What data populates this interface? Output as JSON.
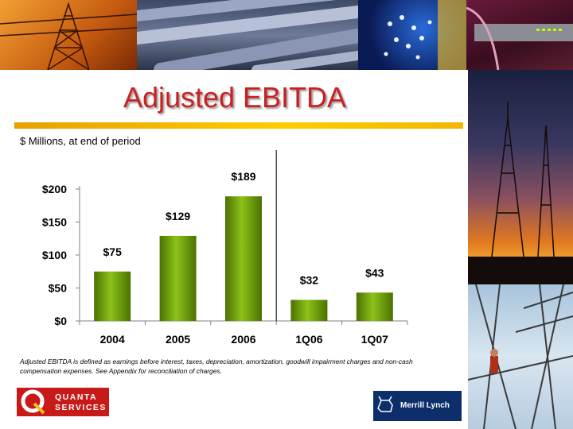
{
  "title": "Adjusted EBITDA",
  "subtitle": "$ Millions, at end of period",
  "chart_data": {
    "type": "bar",
    "categories": [
      "2004",
      "2005",
      "2006",
      "1Q06",
      "1Q07"
    ],
    "values": [
      75,
      129,
      189,
      32,
      43
    ],
    "data_labels": [
      "$75",
      "$129",
      "$189",
      "$32",
      "$43"
    ],
    "yticks": [
      "$0",
      "$50",
      "$100",
      "$150",
      "$200"
    ],
    "ytick_values": [
      0,
      50,
      100,
      150,
      200
    ],
    "ylim": [
      0,
      200
    ],
    "xlabel": "",
    "ylabel": "",
    "grid": false,
    "bar_color": "#6a9a00",
    "divider_after_index": 2
  },
  "footnote": "Adjusted EBITDA is defined as earnings before interest, taxes, depreciation, amortization, goodwill impairment charges and non-cash compensation expenses. See Appendix for reconciliation of charges.",
  "logos": {
    "quanta": {
      "line1": "QUANTA",
      "line2": "SERVICES",
      "color": "#c91a1a"
    },
    "merrill": {
      "text": "Merrill Lynch",
      "color": "#0c2f6b"
    }
  },
  "colors": {
    "title": "#cc1f1f",
    "rule": "#f0b400"
  }
}
